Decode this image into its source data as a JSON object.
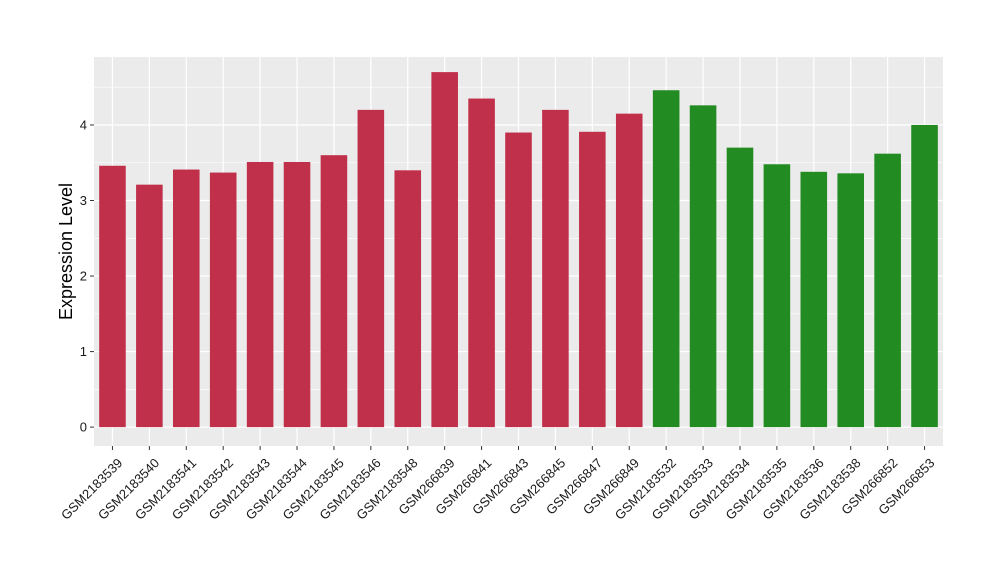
{
  "chart_data": {
    "type": "bar",
    "title": "",
    "xlabel": "",
    "ylabel": "Expression Level",
    "ylim": [
      -0.25,
      4.9
    ],
    "yticks": [
      0,
      1,
      2,
      3,
      4
    ],
    "grid": true,
    "background": "#ebebeb",
    "grid_color": "#ffffff",
    "categories": [
      "GSM2183539",
      "GSM2183540",
      "GSM2183541",
      "GSM2183542",
      "GSM2183543",
      "GSM2183544",
      "GSM2183545",
      "GSM2183546",
      "GSM2183548",
      "GSM266839",
      "GSM266841",
      "GSM266843",
      "GSM266845",
      "GSM266847",
      "GSM266849",
      "GSM2183532",
      "GSM2183533",
      "GSM2183534",
      "GSM2183535",
      "GSM2183536",
      "GSM2183538",
      "GSM266852",
      "GSM266853"
    ],
    "values": [
      3.46,
      3.21,
      3.41,
      3.37,
      3.51,
      3.51,
      3.6,
      4.2,
      3.4,
      4.7,
      4.35,
      3.9,
      4.2,
      3.91,
      4.15,
      4.46,
      4.26,
      3.7,
      3.48,
      3.38,
      3.36,
      3.62,
      4.0
    ],
    "groups": [
      "a",
      "a",
      "a",
      "a",
      "a",
      "a",
      "a",
      "a",
      "a",
      "a",
      "a",
      "a",
      "a",
      "a",
      "a",
      "b",
      "b",
      "b",
      "b",
      "b",
      "b",
      "b",
      "b"
    ],
    "group_colors": {
      "a": "#c1304b",
      "b": "#228b22"
    }
  }
}
